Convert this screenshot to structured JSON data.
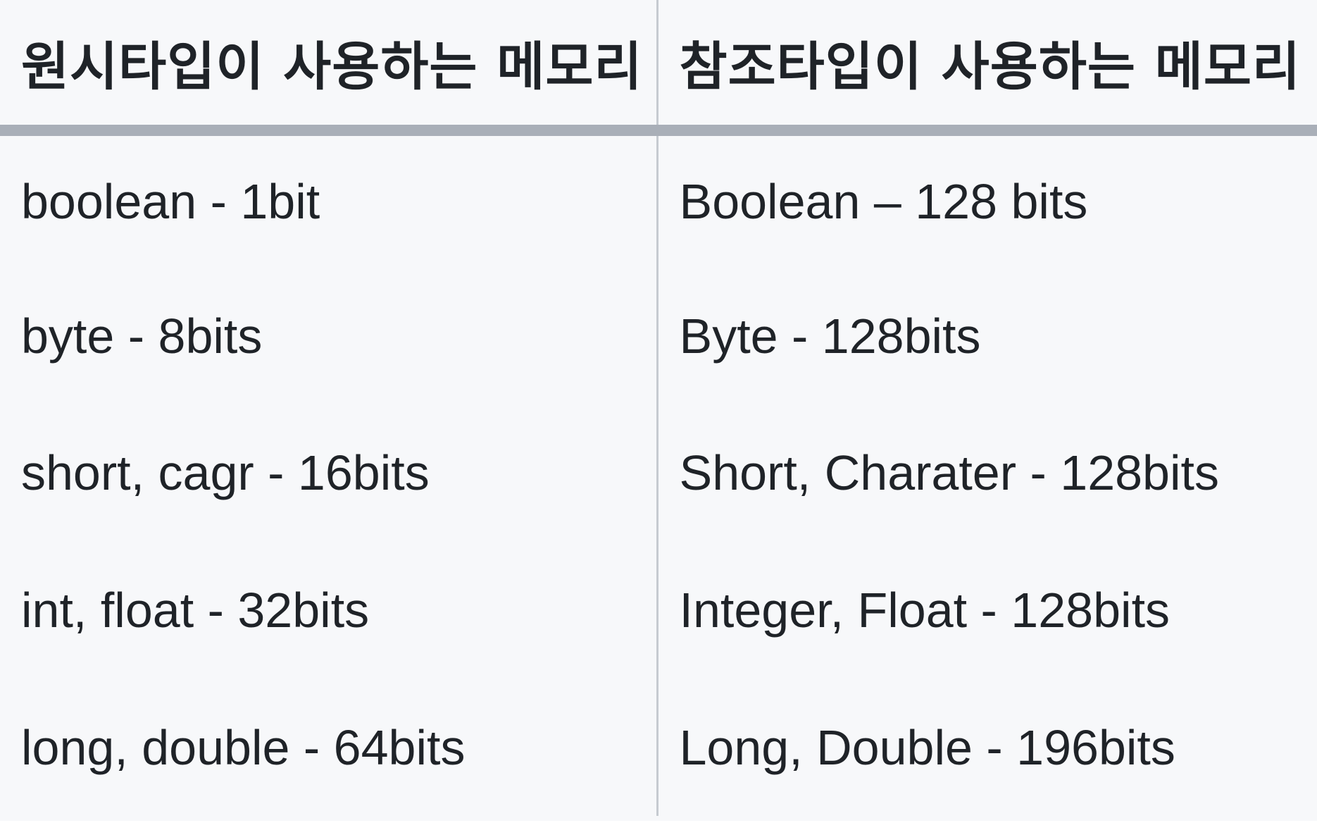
{
  "table": {
    "headers": [
      "원시타입이 사용하는 메모리",
      "참조타입이 사용하는 메모리"
    ],
    "rows": [
      [
        "boolean - 1bit",
        "Boolean – 128 bits"
      ],
      [
        "byte - 8bits",
        "Byte - 128bits"
      ],
      [
        "short, cagr - 16bits",
        "Short, Charater - 128bits"
      ],
      [
        "int, float - 32bits",
        "Integer, Float - 128bits"
      ],
      [
        "long, double - 64bits",
        "Long, Double - 196bits"
      ]
    ]
  },
  "colors": {
    "background": "#f7f8fa",
    "header_rule": "#a9afb8",
    "column_divider": "#c6cbd1",
    "text": "#1f2328"
  }
}
